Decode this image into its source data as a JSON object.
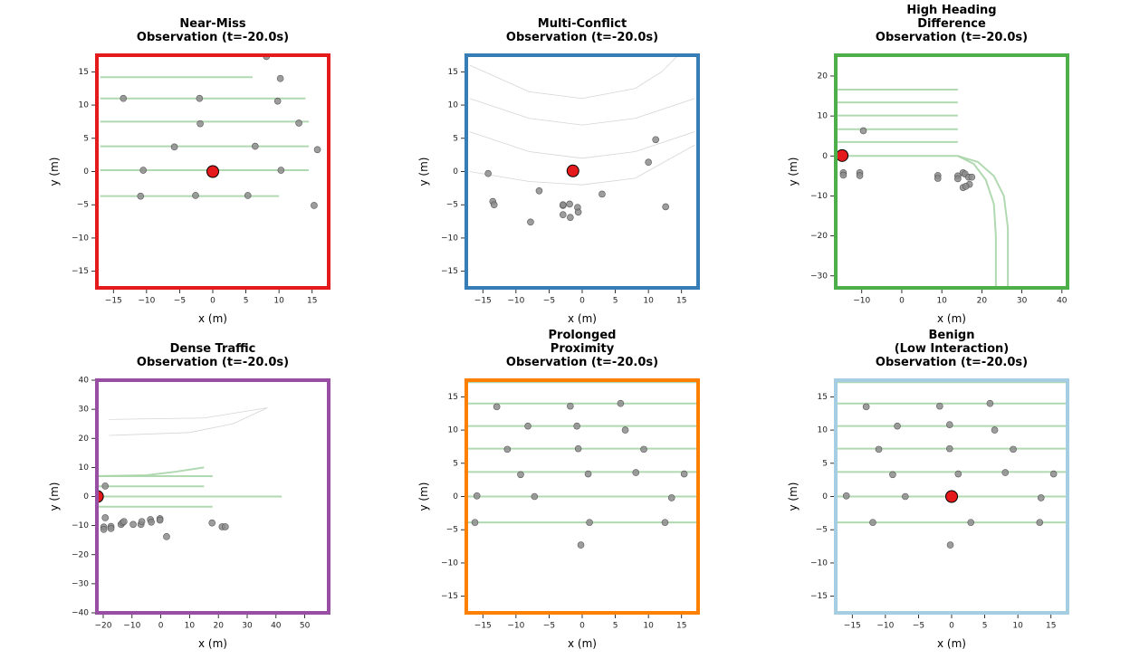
{
  "chart_data": [
    {
      "type": "scatter",
      "title": [
        "Near-Miss",
        "Observation (t=-20.0s)"
      ],
      "frame_color": "#e41a1c",
      "x_label": "x (m)",
      "y_label": "y (m)",
      "xlim": [
        -17.5,
        17.5
      ],
      "ylim": [
        -17.5,
        17.5
      ],
      "xticks": [
        {
          "value": -15,
          "label": "−15"
        },
        {
          "value": -10,
          "label": "−10"
        },
        {
          "value": -5,
          "label": "−5"
        },
        0,
        5,
        10,
        15
      ],
      "yticks": [
        {
          "value": -15,
          "label": "−15"
        },
        {
          "value": -10,
          "label": "−10"
        },
        {
          "value": -5,
          "label": "−5"
        },
        0,
        5,
        10,
        15
      ],
      "lanes": [
        {
          "color": "#a8d5a8",
          "x": [
            -17,
            6
          ],
          "y": [
            14.2,
            14.2
          ]
        },
        {
          "color": "#a8d5a8",
          "x": [
            -17,
            14
          ],
          "y": [
            11,
            11
          ]
        },
        {
          "color": "#a8d5a8",
          "x": [
            -17,
            14.5
          ],
          "y": [
            7.5,
            7.5
          ]
        },
        {
          "color": "#a8d5a8",
          "x": [
            -17,
            14.5
          ],
          "y": [
            3.8,
            3.8
          ]
        },
        {
          "color": "#a8d5a8",
          "x": [
            -17,
            14.5
          ],
          "y": [
            0.2,
            0.2
          ]
        },
        {
          "color": "#a8d5a8",
          "x": [
            -17,
            10
          ],
          "y": [
            -3.7,
            -3.7
          ]
        }
      ],
      "series": [
        {
          "color": "#8c8c8c",
          "x": [
            8.1,
            10.2,
            -13.5,
            -2,
            9.8,
            -1.9,
            13,
            -5.8,
            6.4,
            15.8,
            -10.5,
            10.3,
            -10.9,
            -2.6,
            5.3,
            15.3
          ],
          "values": [
            17.3,
            14.0,
            11.0,
            11.0,
            10.6,
            7.2,
            7.3,
            3.7,
            3.8,
            3.3,
            0.2,
            0.2,
            -3.7,
            -3.6,
            -3.6,
            -5.1
          ]
        },
        {
          "color": "#e41a1c",
          "x": [
            0
          ],
          "values": [
            0
          ]
        }
      ]
    },
    {
      "type": "scatter",
      "title": [
        "Multi-Conflict",
        "Observation (t=-20.0s)"
      ],
      "frame_color": "#377eb8",
      "x_label": "x (m)",
      "y_label": "y (m)",
      "xlim": [
        -17.5,
        17.5
      ],
      "ylim": [
        -17.5,
        17.5
      ],
      "xticks": [
        {
          "value": -15,
          "label": "−15"
        },
        {
          "value": -10,
          "label": "−10"
        },
        {
          "value": -5,
          "label": "−5"
        },
        0,
        5,
        10,
        15
      ],
      "yticks": [
        {
          "value": -15,
          "label": "−15"
        },
        {
          "value": -10,
          "label": "−10"
        },
        {
          "value": -5,
          "label": "−5"
        },
        0,
        5,
        10,
        15
      ],
      "lanes": [
        {
          "color": "#d0d0d0",
          "x": [
            -17,
            -8,
            0,
            8,
            12,
            15
          ],
          "y": [
            16,
            12,
            11,
            12.5,
            15,
            18
          ]
        },
        {
          "color": "#d0d0d0",
          "x": [
            -17,
            -8,
            0,
            8,
            17
          ],
          "y": [
            11,
            8,
            7,
            8,
            11
          ]
        },
        {
          "color": "#d0d0d0",
          "x": [
            -17,
            -8,
            0,
            8,
            17
          ],
          "y": [
            6,
            3,
            2,
            3,
            6
          ]
        },
        {
          "color": "#d0d0d0",
          "x": [
            -17,
            -8,
            0,
            8,
            17
          ],
          "y": [
            0,
            -1.5,
            -2,
            -1,
            4
          ]
        }
      ],
      "series": [
        {
          "color": "#8c8c8c",
          "x": [
            -14.2,
            -13.5,
            -13.3,
            -6.5,
            -2.9,
            -2.9,
            -1.9,
            -0.7,
            -0.6,
            -2.9,
            -1.8,
            -7.8,
            3.0,
            10.0,
            11.1,
            12.6
          ],
          "values": [
            -0.3,
            -4.5,
            -5.0,
            -2.9,
            -5.1,
            -5.0,
            -4.9,
            -5.4,
            -6.1,
            -6.5,
            -6.9,
            -7.6,
            -3.4,
            1.4,
            4.8,
            -5.3
          ]
        },
        {
          "color": "#e41a1c",
          "x": [
            -1.4
          ],
          "values": [
            0.1
          ]
        }
      ]
    },
    {
      "type": "scatter",
      "title": [
        "High Heading",
        "Difference",
        "Observation (t=-20.0s)"
      ],
      "frame_color": "#4daf4a",
      "x_label": "x (m)",
      "y_label": "y (m)",
      "xlim": [
        -16.5,
        41.4
      ],
      "ylim": [
        -33,
        25.2
      ],
      "xticks": [
        {
          "value": -10,
          "label": "−10"
        },
        0,
        10,
        20,
        30,
        40
      ],
      "yticks": [
        {
          "value": -30,
          "label": "−30"
        },
        {
          "value": -20,
          "label": "−20"
        },
        {
          "value": -10,
          "label": "−10"
        },
        0,
        10,
        20
      ],
      "lanes": [
        {
          "color": "#a8d5a8",
          "x": [
            -16,
            14
          ],
          "y": [
            16.6,
            16.6
          ]
        },
        {
          "color": "#a8d5a8",
          "x": [
            -16,
            14
          ],
          "y": [
            13.4,
            13.4
          ]
        },
        {
          "color": "#a8d5a8",
          "x": [
            -16,
            14
          ],
          "y": [
            10.1,
            10.1
          ]
        },
        {
          "color": "#a8d5a8",
          "x": [
            -16,
            14
          ],
          "y": [
            6.7,
            6.7
          ]
        },
        {
          "color": "#a8d5a8",
          "x": [
            -16,
            14
          ],
          "y": [
            3.5,
            3.5
          ]
        },
        {
          "color": "#a8d5a8",
          "x": [
            -16,
            14,
            18,
            21,
            23,
            23.5,
            23.5
          ],
          "y": [
            0,
            0,
            -2,
            -6,
            -12,
            -20,
            -33
          ]
        },
        {
          "color": "#a8d5a8",
          "x": [
            14,
            19,
            23,
            25.5,
            26.5,
            26.5
          ],
          "y": [
            0,
            -1.5,
            -5,
            -10,
            -18,
            -33
          ]
        }
      ],
      "series": [
        {
          "color": "#8c8c8c",
          "x": [
            -9.6,
            -14.6,
            -14.6,
            -10.5,
            -10.5,
            9,
            9,
            14,
            14,
            15.3,
            15.8,
            16.7,
            17.5,
            16.9,
            15.3,
            16
          ],
          "values": [
            6.3,
            -4.2,
            -4.8,
            -4.2,
            -4.9,
            -4.9,
            -5.6,
            -5.0,
            -5.7,
            -4.2,
            -4.5,
            -5.3,
            -5.3,
            -7.1,
            -7.9,
            -7.6
          ]
        },
        {
          "color": "#e41a1c",
          "x": [
            -14.9
          ],
          "values": [
            0.1
          ]
        }
      ]
    },
    {
      "type": "scatter",
      "title": [
        "Dense Traffic",
        "Observation (t=-20.0s)"
      ],
      "frame_color": "#984ea3",
      "x_label": "x (m)",
      "y_label": "y (m)",
      "xlim": [
        -22.2,
        58.3
      ],
      "ylim": [
        -40,
        40
      ],
      "xticks": [
        {
          "value": -20,
          "label": "−20"
        },
        {
          "value": -10,
          "label": "−10"
        },
        0,
        10,
        20,
        30,
        40,
        50
      ],
      "yticks": [
        {
          "value": -40,
          "label": "−40"
        },
        {
          "value": -30,
          "label": "−30"
        },
        {
          "value": -20,
          "label": "−20"
        },
        {
          "value": -10,
          "label": "−10"
        },
        0,
        10,
        20,
        30,
        40
      ],
      "lanes": [
        {
          "color": "#d0d0d0",
          "x": [
            -18,
            10,
            25,
            37
          ],
          "y": [
            21,
            22,
            25,
            30.5
          ]
        },
        {
          "color": "#d0d0d0",
          "x": [
            -18,
            15,
            37
          ],
          "y": [
            26.5,
            27,
            30.5
          ]
        },
        {
          "color": "#a8d5a8",
          "x": [
            -22,
            -5,
            5,
            15
          ],
          "y": [
            7,
            7.3,
            8.5,
            10
          ]
        },
        {
          "color": "#a8d5a8",
          "x": [
            -22,
            18
          ],
          "y": [
            7,
            7
          ]
        },
        {
          "color": "#a8d5a8",
          "x": [
            -22,
            15
          ],
          "y": [
            3.5,
            3.5
          ]
        },
        {
          "color": "#a8d5a8",
          "x": [
            -22,
            42
          ],
          "y": [
            0,
            0
          ]
        },
        {
          "color": "#a8d5a8",
          "x": [
            -22,
            18
          ],
          "y": [
            -3.5,
            -3.5
          ]
        }
      ],
      "series": [
        {
          "color": "#8c8c8c",
          "x": [
            -19.3,
            -19.3,
            -19.8,
            -19.8,
            -17.3,
            -17.3,
            -13.8,
            -13.3,
            -12.8,
            -9.6,
            -6.9,
            -6.6,
            -3.6,
            -3.3,
            -0.3,
            -0.3,
            2.0,
            17.8,
            21.3,
            22.4
          ],
          "values": [
            3.6,
            -7.3,
            -10.5,
            -11.3,
            -10.3,
            -11.0,
            -9.6,
            -9.0,
            -8.6,
            -9.6,
            -9.6,
            -8.6,
            -7.9,
            -8.8,
            -7.6,
            -8.1,
            -13.8,
            -9.1,
            -10.4,
            -10.4
          ]
        },
        {
          "color": "#e41a1c",
          "x": [
            -22
          ],
          "values": [
            0
          ]
        }
      ]
    },
    {
      "type": "scatter",
      "title": [
        "Prolonged",
        "Proximity",
        "Observation (t=-20.0s)"
      ],
      "frame_color": "#ff7f00",
      "x_label": "x (m)",
      "y_label": "y (m)",
      "xlim": [
        -17.5,
        17.5
      ],
      "ylim": [
        -17.5,
        17.5
      ],
      "xticks": [
        {
          "value": -15,
          "label": "−15"
        },
        {
          "value": -10,
          "label": "−10"
        },
        {
          "value": -5,
          "label": "−5"
        },
        0,
        5,
        10,
        15
      ],
      "yticks": [
        {
          "value": -15,
          "label": "−15"
        },
        {
          "value": -10,
          "label": "−10"
        },
        {
          "value": -5,
          "label": "−5"
        },
        0,
        5,
        10,
        15
      ],
      "lanes": [
        {
          "color": "#a8d5a8",
          "x": [
            -17.5,
            17.5
          ],
          "y": [
            17.2,
            17.2
          ]
        },
        {
          "color": "#a8d5a8",
          "x": [
            -17.5,
            17.5
          ],
          "y": [
            14,
            14
          ]
        },
        {
          "color": "#a8d5a8",
          "x": [
            -17.5,
            17.5
          ],
          "y": [
            10.6,
            10.6
          ]
        },
        {
          "color": "#a8d5a8",
          "x": [
            -17.5,
            17.5
          ],
          "y": [
            7.2,
            7.2
          ]
        },
        {
          "color": "#a8d5a8",
          "x": [
            -17.5,
            17.5
          ],
          "y": [
            3.7,
            3.7
          ]
        },
        {
          "color": "#a8d5a8",
          "x": [
            -17.5,
            17.5
          ],
          "y": [
            0,
            0
          ]
        },
        {
          "color": "#a8d5a8",
          "x": [
            -17.5,
            17.5
          ],
          "y": [
            -3.9,
            -3.9
          ]
        }
      ],
      "series": [
        {
          "color": "#8c8c8c",
          "x": [
            -12.9,
            -1.8,
            5.8,
            -8.2,
            -0.8,
            6.5,
            -11.3,
            -0.6,
            9.3,
            -9.3,
            0.9,
            8.1,
            15.4,
            -15.9,
            -7.2,
            13.5,
            -16.2,
            1.1,
            12.5,
            -0.2
          ],
          "values": [
            13.5,
            13.6,
            14.0,
            10.6,
            10.6,
            10.0,
            7.1,
            7.2,
            7.1,
            3.3,
            3.4,
            3.6,
            3.4,
            0.1,
            0.0,
            -0.2,
            -3.9,
            -3.9,
            -3.9,
            -7.3
          ]
        }
      ]
    },
    {
      "type": "scatter",
      "title": [
        "Benign",
        "(Low Interaction)",
        "Observation (t=-20.0s)"
      ],
      "frame_color": "#a6cee3",
      "x_label": "x (m)",
      "y_label": "y (m)",
      "xlim": [
        -17.5,
        17.5
      ],
      "ylim": [
        -17.5,
        17.5
      ],
      "xticks": [
        {
          "value": -15,
          "label": "−15"
        },
        {
          "value": -10,
          "label": "−10"
        },
        {
          "value": -5,
          "label": "−5"
        },
        0,
        5,
        10,
        15
      ],
      "yticks": [
        {
          "value": -15,
          "label": "−15"
        },
        {
          "value": -10,
          "label": "−10"
        },
        {
          "value": -5,
          "label": "−5"
        },
        0,
        5,
        10,
        15
      ],
      "lanes": [
        {
          "color": "#a8d5a8",
          "x": [
            -17.5,
            17.5
          ],
          "y": [
            17.2,
            17.2
          ]
        },
        {
          "color": "#a8d5a8",
          "x": [
            -17.5,
            17.5
          ],
          "y": [
            14,
            14
          ]
        },
        {
          "color": "#a8d5a8",
          "x": [
            -17.5,
            17.5
          ],
          "y": [
            10.6,
            10.6
          ]
        },
        {
          "color": "#a8d5a8",
          "x": [
            -17.5,
            17.5
          ],
          "y": [
            7.2,
            7.2
          ]
        },
        {
          "color": "#a8d5a8",
          "x": [
            -17.5,
            17.5
          ],
          "y": [
            3.7,
            3.7
          ]
        },
        {
          "color": "#a8d5a8",
          "x": [
            -17.5,
            17.5
          ],
          "y": [
            0,
            0
          ]
        },
        {
          "color": "#a8d5a8",
          "x": [
            -17.5,
            17.5
          ],
          "y": [
            -3.9,
            -3.9
          ]
        }
      ],
      "series": [
        {
          "color": "#8c8c8c",
          "x": [
            -12.9,
            -1.8,
            5.8,
            -8.2,
            -0.3,
            6.5,
            -11,
            -0.3,
            9.3,
            -8.9,
            1.0,
            8.1,
            15.4,
            -15.9,
            -7.0,
            13.5,
            -11.9,
            2.9,
            13.3,
            -0.2
          ],
          "values": [
            13.5,
            13.6,
            14.0,
            10.6,
            10.8,
            10.0,
            7.1,
            7.2,
            7.1,
            3.3,
            3.4,
            3.6,
            3.4,
            0.1,
            0.0,
            -0.2,
            -3.9,
            -3.9,
            -3.9,
            -7.3
          ]
        },
        {
          "color": "#e41a1c",
          "x": [
            0
          ],
          "values": [
            0
          ]
        }
      ]
    }
  ]
}
